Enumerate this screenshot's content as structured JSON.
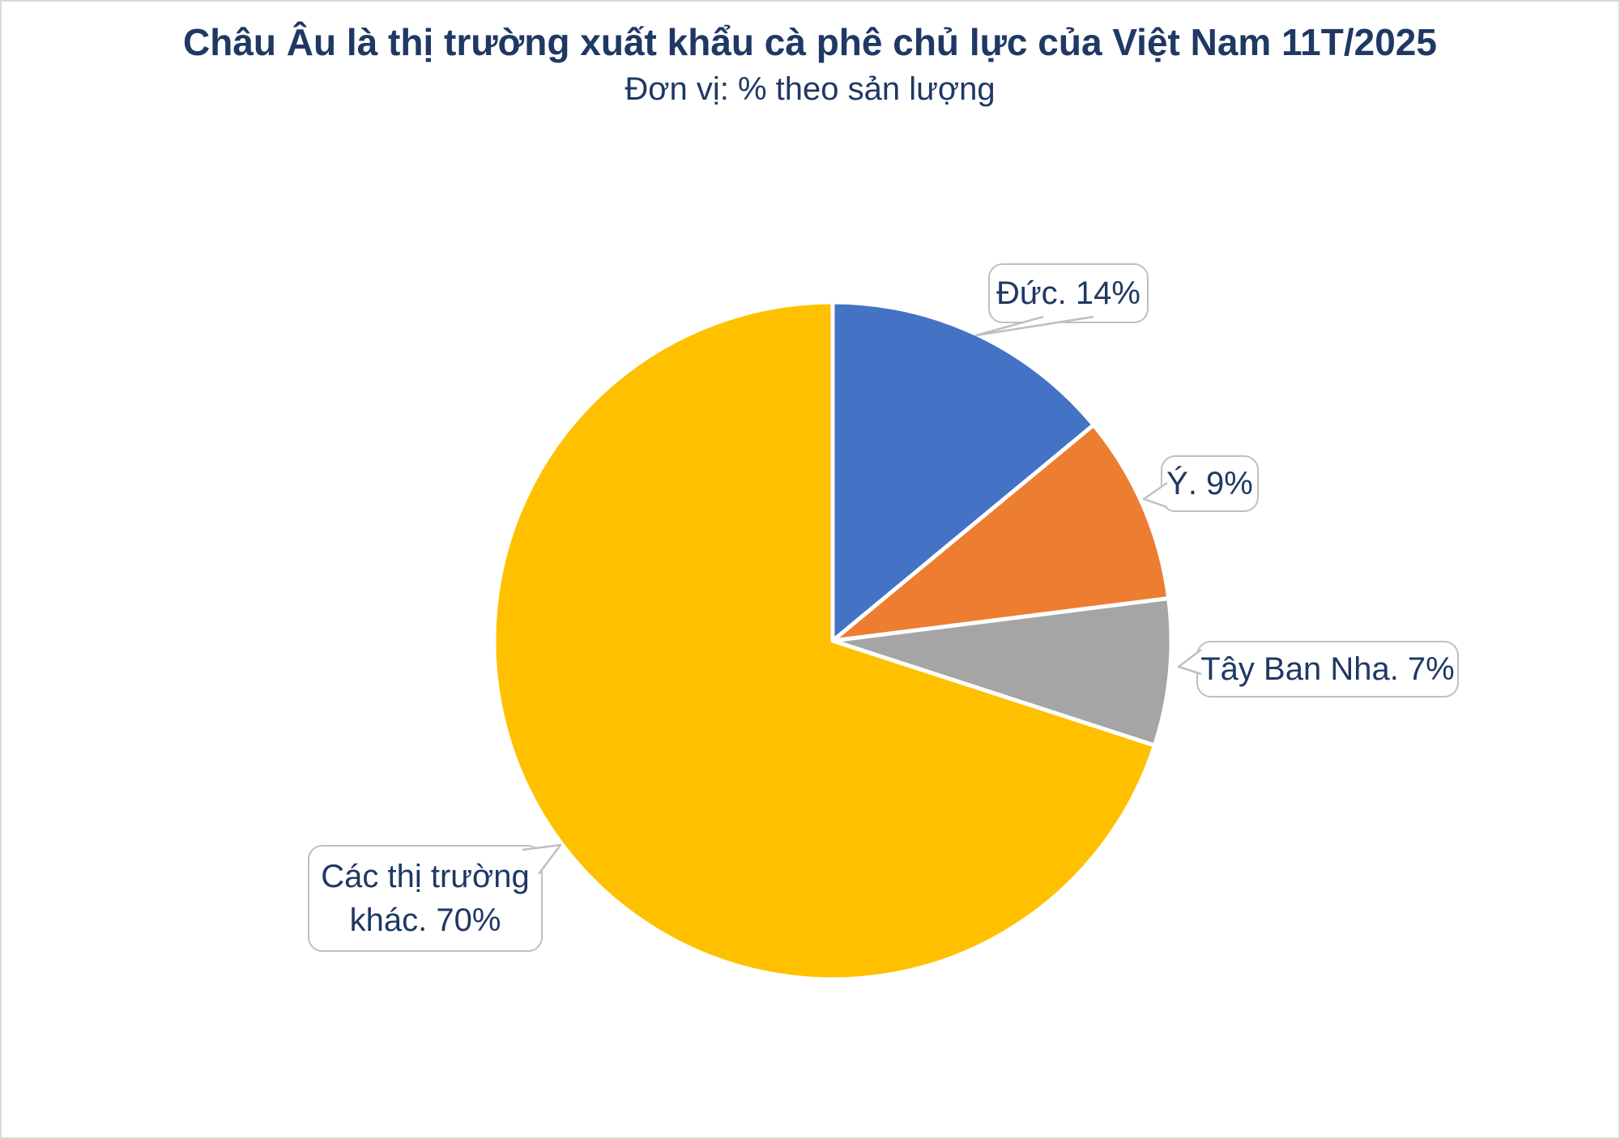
{
  "page": {
    "title": "Châu Âu là thị trường xuất khẩu cà phê chủ lực của Việt Nam 11T/2025",
    "subtitle": "Đơn vị: % theo sản lượng"
  },
  "colors": {
    "title_text": "#1F3864",
    "callout_text": "#1F3864",
    "callout_border": "#BFBFBF",
    "slice_separator": "#FFFFFF",
    "background": "#FFFFFF",
    "page_border": "#D9D9D9"
  },
  "chart_data": {
    "type": "pie",
    "title": "Châu Âu là thị trường xuất khẩu cà phê chủ lực của Việt Nam 11T/2025",
    "subtitle": "Đơn vị: % theo sản lượng",
    "unit": "% theo sản lượng",
    "categories": [
      "Đức",
      "Ý",
      "Tây Ban Nha",
      "Các thị trường khác"
    ],
    "values": [
      14,
      9,
      7,
      70
    ],
    "colors": [
      "#4472C4",
      "#ED7D31",
      "#A5A5A5",
      "#FFC000"
    ],
    "start_angle_deg": 0,
    "direction": "clockwise",
    "legend_position": "none",
    "data_labels": "callout bubbles",
    "callouts": [
      {
        "lines": [
          "Đức. 14%"
        ]
      },
      {
        "lines": [
          "Ý. 9%"
        ]
      },
      {
        "lines": [
          "Tây Ban Nha. 7%"
        ]
      },
      {
        "lines": [
          "Các thị trường",
          "khác. 70%"
        ]
      }
    ]
  }
}
